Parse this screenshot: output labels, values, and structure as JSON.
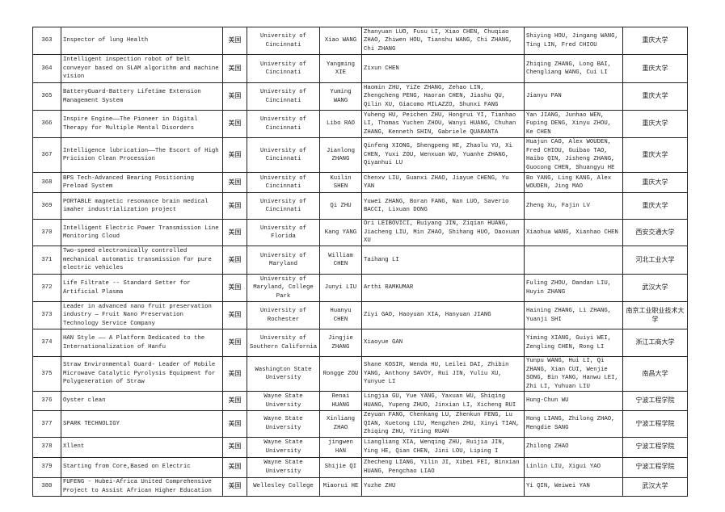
{
  "rows": [
    {
      "no": "363",
      "project": "Inspector of lung Health",
      "country": "美国",
      "university": "University of Cincinnati",
      "leader": "Xiao WANG",
      "members": "Zhanyuan LUO, Fusu LI, Xiao CHEN, Chuqiao ZHAO, Zhiwen HOU, Tianshu WANG, Chi ZHANG, Chi ZHANG",
      "advisors": "Shiying HOU, Jingang WANG, Ting LIN, Fred CHIOU",
      "cn_university": "重庆大学"
    },
    {
      "no": "364",
      "project": "Intelligent inspection robot of belt conveyor based on SLAM algorithm and machine vision",
      "country": "美国",
      "university": "University of Cincinnati",
      "leader": "Yangming XIE",
      "members": "Zixun CHEN",
      "advisors": "Zhiqing ZHANG, Long BAI, Chengliang WANG, Cui LI",
      "cn_university": "重庆大学"
    },
    {
      "no": "365",
      "project": "BatteryGuard-Battery Lifetime Extension Management System",
      "country": "美国",
      "university": "University of Cincinnati",
      "leader": "Yuming WANG",
      "members": "Haomin ZHU, YiZe ZHANG, Zehao LIN, Zhengcheng PENG, Haoran CHEN, Jiashu QU, Qilin XU, Giacomo MILAZZO, Shunxi FANG",
      "advisors": "Jianyu PAN",
      "cn_university": "重庆大学"
    },
    {
      "no": "366",
      "project": "Inspire Engine——The Pioneer in Digital Therapy for Multiple Mental Disorders",
      "country": "美国",
      "university": "University of Cincinnati",
      "leader": "Libo RAO",
      "members": "Yuheng HU, Peichen ZHU, Hongrui YI, Tianhao LI, Thomas Yuchen ZHOU, Wanyi HUANG, Chuhan ZHANG, Kenneth SHIN, Gabriele QUARANTA",
      "advisors": "Yan JIANG, Junhao WEN, Fuping DENG, Xinyu ZHOU, Ke CHEN",
      "cn_university": "重庆大学"
    },
    {
      "no": "367",
      "project": "Intelligence lubrication——The Escort of High Pricision Clean Procession",
      "country": "美国",
      "university": "University of Cincinnati",
      "leader": "Jianlong ZHANG",
      "members": "Qinfeng XIONG, Shengpeng HE, Zhaolu YU, Xi CHEN, Yuxi ZOU, Wenxuan WU, Yuanhe ZHANG, Qiyanhui LU",
      "advisors": "Huajun CAO, Alex WOUDEN, Fred CHIOU, Guibao TAO, Haibo QIN, Jisheng ZHANG, Guocong CHEN, Shuangyu HE",
      "cn_university": "重庆大学"
    },
    {
      "no": "368",
      "project": "BPS Tech-Advanced Bearing Positioning Preload System",
      "country": "美国",
      "university": "University of Cincinnati",
      "leader": "Kuilin SHEN",
      "members": "Chenxv LIU, Guanxi ZHAO, Jiayue CHENG, Yu YAN",
      "advisors": "Bo YANG, Ling KANG, Alex WOUDEN, Jing MAO",
      "cn_university": "重庆大学"
    },
    {
      "no": "369",
      "project": "PORTABLE magnetic resonance brain medical imaher industrialization project",
      "country": "美国",
      "university": "University of Cincinnati",
      "leader": "Qi ZHU",
      "members": "Yuwei ZHANG, Boran FANG, Nan LUO, Saverio BACCI, Lixuan DONG",
      "advisors": "Zheng Xu, Fajin LV",
      "cn_university": "重庆大学"
    },
    {
      "no": "370",
      "project": "Intelligent Electric Power Transmission Line Monitoring Cloud",
      "country": "美国",
      "university": "University of Florida",
      "leader": "Kang YANG",
      "members": "Ori LEIBOVICI, Ruiyang JIN, Ziqian HUANG, Jiacheng LIU, Min ZHAO, Shihang HUO, Daoxuan XU",
      "advisors": "Xiaohua WANG, Xianhao CHEN",
      "cn_university": "西安交通大学"
    },
    {
      "no": "371",
      "project": "Two-speed electronically controlled mechanical automatic transmission for pure electric vehicles",
      "country": "美国",
      "university": "University of Maryland",
      "leader": "William CHEN",
      "members": "Taihang LI",
      "advisors": "",
      "cn_university": "河北工业大学"
    },
    {
      "no": "372",
      "project": "Life Filtrate -- Standard Setter for Artificial Plasma",
      "country": "美国",
      "university": "University of Maryland, College Park",
      "leader": "Junyi LIU",
      "members": "Arthi RAMKUMAR",
      "advisors": "Fuling ZHOU, Dandan LIU, Huyin ZHANG",
      "cn_university": "武汉大学"
    },
    {
      "no": "373",
      "project": "Leader in advanced nano fruit preservation industry — Fruit Nano Preservation Technology Service Company",
      "country": "美国",
      "university": "University of Rochester",
      "leader": "Huanyu CHEN",
      "members": "Ziyi GAO, Haoyuan XIA, Hanyuan JIANG",
      "advisors": "Haining ZHANG, Li ZHANG, Yuanji SHI",
      "cn_university": "南京工业职业技术大学"
    },
    {
      "no": "374",
      "project": "HAN Style —— A Platform Dedicated to the Internationalization of Hanfu",
      "country": "美国",
      "university": "University of Southern California",
      "leader": "Jingjie ZHANG",
      "members": " Xiaoyue GAN",
      "advisors": "Yiming XIANG, Guiyi WEI, Zengling CHEN, Rong LI",
      "cn_university": "浙江工商大学"
    },
    {
      "no": "375",
      "project": "Straw Environmental Guard- Leader of Mobile Microwave Catalytic Pyrolysis Equipment for Polygeneration of Straw",
      "country": "美国",
      "university": "Washington State University",
      "leader": "Rongge ZOU",
      "members": "Shane KOSIR, Wenda HU, Leilei DAI, Zhibin YANG, Anthony SAVOY, Rui JIN, Yuliu XU, Yunyue LI",
      "advisors": "Yunpu WANG, Hui LI, Qi ZHANG, Xian CUI, Wenjie SONG, Bin YANG, Hanwu LEI, Zhi LI, Yuhuan LIU",
      "cn_university": "南昌大学"
    },
    {
      "no": "376",
      "project": "Oyster clean",
      "country": "美国",
      "university": "Wayne State University",
      "leader": "Renai HUANG",
      "members": "Lingjia GU, Yue YANG, Yaxuan WU, Shiqing HUANG, Yupeng ZHUO, Jinxian LI, Xicheng RUI",
      "advisors": "Hung-Chun WU",
      "cn_university": "宁波工程学院"
    },
    {
      "no": "377",
      "project": "SPARK TECHNOLIGY",
      "country": "美国",
      "university": "Wayne State University",
      "leader": "Xinliang ZHAO",
      "members": "Zeyuan FANG, Chenkang LU, Zhenkun FENG, Lu QIAN, Xuetong LIU, Mengzhen ZHU, Xinyi TIAN, Zhiqing ZHU, Yiting RUAN",
      "advisors": "Hong LIANG, Zhilong ZHAO, Mengdie SANG",
      "cn_university": "宁波工程学院"
    },
    {
      "no": "378",
      "project": "Xllent",
      "country": "美国",
      "university": "Wayne State University",
      "leader": "jingwen HAN",
      "members": "Liangliang XIA, Wenqing ZHU, Ruijia JIN, Ying HE, Qian CHEN, Jini LOU, Liping I",
      "advisors": "Zhilong ZHAO",
      "cn_university": "宁波工程学院"
    },
    {
      "no": "379",
      "project": "Starting from Core,Based on Electric",
      "country": "美国",
      "university": "Wayne State University",
      "leader": "Shijie QI",
      "members": "Zhecheng LIANG, Yilin JI, Xibei FEI, Binxian HUANG, Pengchao LIAO",
      "advisors": "Linlin LIU, Xigui YAO",
      "cn_university": "宁波工程学院"
    },
    {
      "no": "380",
      "project": "FUFENG - Hubei-Africa United Comprehensive Project to Assist African Higher Education",
      "country": "美国",
      "university": "Wellesley College",
      "leader": "Miaorui HE",
      "members": "Yuzhe ZHU",
      "advisors": "Yi QIN, Weiwei YAN",
      "cn_university": "武汉大学"
    }
  ]
}
